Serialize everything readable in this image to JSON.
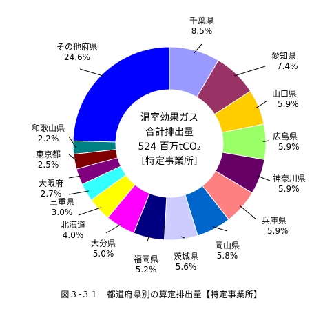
{
  "chart_data": {
    "type": "pie",
    "donut": true,
    "center_text": [
      "温室効果ガス",
      "合計排出量",
      "524 百万tCO₂",
      "[特定事業所]"
    ],
    "caption": "図３-３１　都道府県別の算定排出量【特定事業所】",
    "slices": [
      {
        "name": "千葉県",
        "value": 8.5,
        "label": "8.5%",
        "color": "#9999ff"
      },
      {
        "name": "愛知県",
        "value": 7.4,
        "label": "7.4%",
        "color": "#993366"
      },
      {
        "name": "山口県",
        "value": 5.9,
        "label": "5.9%",
        "color": "#ffcc00"
      },
      {
        "name": "広島県",
        "value": 5.9,
        "label": "5.9%",
        "color": "#99ff66"
      },
      {
        "name": "神奈川県",
        "value": 5.9,
        "label": "5.9%",
        "color": "#660066"
      },
      {
        "name": "兵庫県",
        "value": 5.9,
        "label": "5.9%",
        "color": "#ff8080"
      },
      {
        "name": "岡山県",
        "value": 5.8,
        "label": "5.8%",
        "color": "#0066cc"
      },
      {
        "name": "茨城県",
        "value": 5.6,
        "label": "5.6%",
        "color": "#ccccff"
      },
      {
        "name": "福岡県",
        "value": 5.2,
        "label": "5.2%",
        "color": "#000080"
      },
      {
        "name": "大分県",
        "value": 5.0,
        "label": "5.0%",
        "color": "#ff00ff"
      },
      {
        "name": "北海道",
        "value": 4.0,
        "label": "4.0%",
        "color": "#ffff00"
      },
      {
        "name": "三重県",
        "value": 3.0,
        "label": "3.0%",
        "color": "#33ffff"
      },
      {
        "name": "大阪府",
        "value": 2.7,
        "label": "2.7%",
        "color": "#800080"
      },
      {
        "name": "東京都",
        "value": 2.5,
        "label": "2.5%",
        "color": "#800000"
      },
      {
        "name": "和歌山県",
        "value": 2.2,
        "label": "2.2%",
        "color": "#008080"
      },
      {
        "name": "その他府県",
        "value": 24.6,
        "label": "24.6%",
        "color": "#0000ff"
      }
    ]
  }
}
